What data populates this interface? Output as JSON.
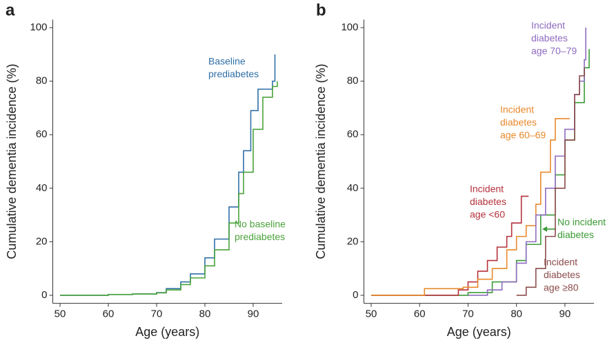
{
  "chart_data": [
    {
      "type": "line",
      "step": true,
      "panel": "a",
      "x_label": "Age (years)",
      "y_label": "Cumulative dementia incidence (%)",
      "xlim": [
        48.5,
        96
      ],
      "ylim": [
        -3,
        103
      ],
      "xticks": [
        50,
        60,
        70,
        80,
        90
      ],
      "yticks": [
        0,
        20,
        40,
        60,
        80,
        100
      ],
      "series": [
        {
          "label": [
            "Baseline",
            "prediabetes"
          ],
          "color": "#2f6fa8",
          "x": [
            50,
            60,
            65,
            70,
            72,
            75,
            77,
            80,
            82,
            85,
            87,
            88,
            89.5,
            91,
            92,
            93,
            94,
            94.5
          ],
          "values": [
            0,
            0.3,
            0.5,
            1,
            2.5,
            5,
            8,
            14,
            21,
            33,
            46,
            54,
            69,
            77,
            77,
            77,
            80,
            90
          ]
        },
        {
          "label": [
            "No baseline",
            "prediabetes"
          ],
          "color": "#4aa33a",
          "x": [
            50,
            60,
            65,
            70,
            72,
            75,
            77,
            80,
            82,
            85,
            87,
            88,
            90,
            92,
            94,
            95
          ],
          "values": [
            0,
            0.3,
            0.5,
            0.9,
            2,
            4,
            6.5,
            11,
            17,
            27,
            38,
            46,
            62,
            74,
            78,
            80
          ]
        }
      ]
    },
    {
      "type": "line",
      "step": true,
      "panel": "b",
      "x_label": "Age (years)",
      "y_label": "Cumulative dementia incidence (%)",
      "xlim": [
        48.5,
        96
      ],
      "ylim": [
        -3,
        103
      ],
      "xticks": [
        50,
        60,
        70,
        80,
        90
      ],
      "yticks": [
        0,
        20,
        40,
        60,
        80,
        100
      ],
      "series": [
        {
          "label": [
            "No incident",
            "diabetes"
          ],
          "color": "#3a9a34",
          "x": [
            50,
            60,
            70,
            75,
            80,
            82,
            85,
            88,
            90,
            92,
            94,
            95
          ],
          "values": [
            0,
            0,
            1,
            5,
            13,
            19,
            30,
            45,
            58,
            72,
            85,
            92
          ]
        },
        {
          "label": [
            "Incident",
            "diabetes",
            "age <60"
          ],
          "color": "#b5303b",
          "x": [
            50,
            67,
            68,
            70,
            72,
            74,
            76,
            78,
            79,
            81,
            82.5
          ],
          "values": [
            0,
            0,
            2,
            5,
            9,
            13,
            18,
            22,
            27,
            37,
            37
          ]
        },
        {
          "label": [
            "Incident",
            "diabetes",
            "age 60–69"
          ],
          "color": "#e8892b",
          "x": [
            50,
            61,
            69,
            72,
            75,
            78,
            80,
            82,
            84,
            85,
            87,
            88,
            91
          ],
          "values": [
            0,
            2.5,
            3,
            6,
            10,
            17,
            22,
            26,
            34,
            46,
            58,
            66,
            66
          ]
        },
        {
          "label": [
            "Incident",
            "diabetes",
            "age 70–79"
          ],
          "color": "#8e6bbf",
          "x": [
            70,
            74,
            77,
            80,
            82,
            84,
            86,
            88,
            90,
            92,
            93,
            94,
            94.3
          ],
          "values": [
            0,
            2,
            5,
            12,
            20,
            30,
            40,
            52,
            62,
            75,
            80,
            88,
            100
          ]
        },
        {
          "label": [
            "Incident",
            "diabetes",
            "age ≥80"
          ],
          "color": "#8b4a4a",
          "x": [
            80,
            82,
            84,
            86,
            88,
            90,
            92,
            93,
            94
          ],
          "values": [
            0,
            3,
            10,
            22,
            40,
            58,
            75,
            82,
            85
          ]
        }
      ]
    }
  ]
}
